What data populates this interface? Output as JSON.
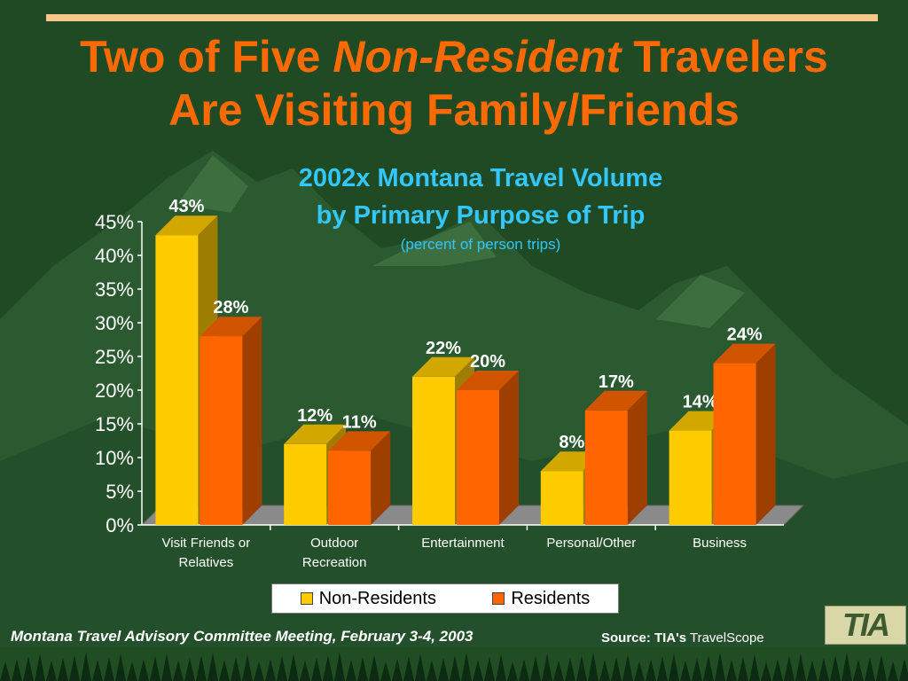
{
  "slide": {
    "title_line1_pre": "Two of Five ",
    "title_line1_em": "Non-Resident",
    "title_line1_post": " Travelers",
    "title_line2": "Are Visiting Family/Friends",
    "footer_left": "Montana Travel Advisory Committee Meeting, February 3-4, 2003",
    "footer_source_bold": "Source: TIA's",
    "footer_source": " TravelScope",
    "logo_text": "TIA"
  },
  "colors": {
    "background": "#1f4a24",
    "title": "#ff6a00",
    "subtitle": "#33c6ff",
    "non_residents": "#ffcc00",
    "residents": "#ff6600",
    "floor": "#8a8a8a"
  },
  "chart_data": {
    "type": "bar",
    "title_line1": "2002x Montana Travel Volume",
    "title_line2": "by Primary Purpose of Trip",
    "subtitle": "(percent of person trips)",
    "categories": [
      [
        "Visit Friends or",
        "Relatives"
      ],
      [
        "Outdoor",
        "Recreation"
      ],
      [
        "Entertainment"
      ],
      [
        "Personal/Other"
      ],
      [
        "Business"
      ]
    ],
    "series": [
      {
        "name": "Non-Residents",
        "values": [
          43,
          12,
          22,
          8,
          14
        ],
        "labels": [
          "43%",
          "12%",
          "22%",
          "8%",
          "14%"
        ]
      },
      {
        "name": "Residents",
        "values": [
          28,
          11,
          20,
          17,
          24
        ],
        "labels": [
          "28%",
          "11%",
          "20%",
          "17%",
          "24%"
        ]
      }
    ],
    "ylim": [
      0,
      45
    ],
    "yticks": [
      "0%",
      "5%",
      "10%",
      "15%",
      "20%",
      "25%",
      "30%",
      "35%",
      "40%",
      "45%"
    ],
    "legend_position": "bottom",
    "grid": false
  }
}
